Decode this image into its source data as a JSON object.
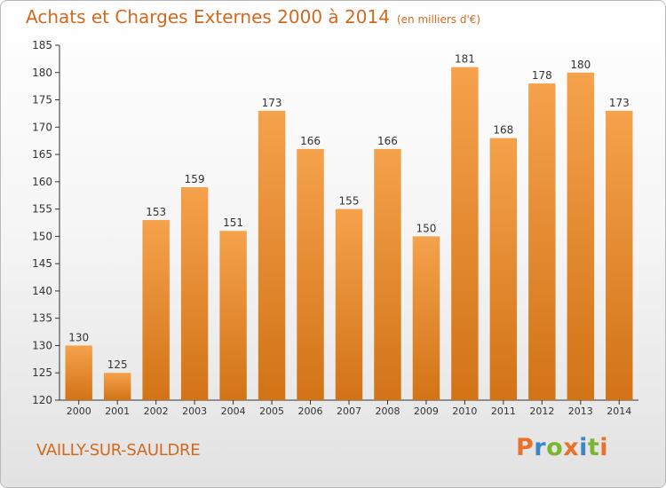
{
  "chart_data": {
    "type": "bar",
    "title": "Achats et Charges Externes 2000 à 2014",
    "subtitle": "(en milliers d'€)",
    "categories": [
      "2000",
      "2001",
      "2002",
      "2003",
      "2004",
      "2005",
      "2006",
      "2007",
      "2008",
      "2009",
      "2010",
      "2011",
      "2012",
      "2013",
      "2014"
    ],
    "values": [
      130,
      125,
      153,
      159,
      151,
      173,
      166,
      155,
      166,
      150,
      181,
      168,
      178,
      180,
      173
    ],
    "ylim": [
      120,
      185
    ],
    "yticks": [
      120,
      125,
      130,
      135,
      140,
      145,
      150,
      155,
      160,
      165,
      170,
      175,
      180,
      185
    ],
    "grid": false,
    "legend": "none",
    "bar_color": "#f0953e",
    "bar_color_dark": "#d27316"
  },
  "footer": {
    "commune": "VAILLY-SUR-SAULDRE",
    "logo_text": "Proxiti",
    "logo_colors": [
      "#e9722a",
      "#3c86c6",
      "#7cb530",
      "#e9722a",
      "#3c86c6",
      "#7cb530",
      "#e9722a"
    ]
  },
  "colors": {
    "title": "#d2691e",
    "axis": "#333333"
  }
}
